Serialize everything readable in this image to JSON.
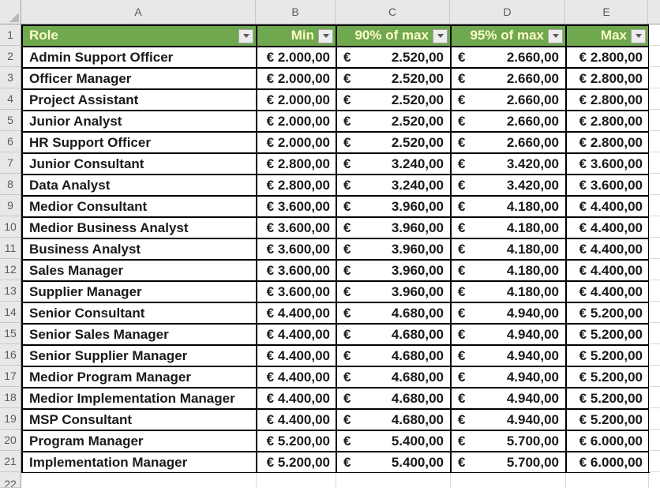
{
  "sheet": {
    "column_letters": [
      "A",
      "B",
      "C",
      "D",
      "E"
    ],
    "row_numbers": [
      "1",
      "2",
      "3",
      "4",
      "5",
      "6",
      "7",
      "8",
      "9",
      "10",
      "11",
      "12",
      "13",
      "14",
      "15",
      "16",
      "17",
      "18",
      "19",
      "20",
      "21",
      "22"
    ],
    "colors": {
      "header_bg": "#6FA84F",
      "header_text": "#FDFBC8",
      "grid_border": "#000000",
      "chrome_bg": "#E8E8E8",
      "chrome_text": "#5A5A5A"
    },
    "table": {
      "currency_symbol": "€",
      "headers": {
        "role": "Role",
        "min": "Min",
        "p90": "90% of max",
        "p95": "95% of max",
        "max": "Max"
      },
      "rows": [
        {
          "role": "Admin Support Officer",
          "min": "€ 2.000,00",
          "p90": "2.520,00",
          "p95": "2.660,00",
          "max": "€ 2.800,00"
        },
        {
          "role": "Officer Manager",
          "min": "€ 2.000,00",
          "p90": "2.520,00",
          "p95": "2.660,00",
          "max": "€ 2.800,00"
        },
        {
          "role": "Project Assistant",
          "min": "€ 2.000,00",
          "p90": "2.520,00",
          "p95": "2.660,00",
          "max": "€ 2.800,00"
        },
        {
          "role": "Junior Analyst",
          "min": "€ 2.000,00",
          "p90": "2.520,00",
          "p95": "2.660,00",
          "max": "€ 2.800,00"
        },
        {
          "role": "HR Support Officer",
          "min": "€ 2.000,00",
          "p90": "2.520,00",
          "p95": "2.660,00",
          "max": "€ 2.800,00"
        },
        {
          "role": "Junior Consultant",
          "min": "€ 2.800,00",
          "p90": "3.240,00",
          "p95": "3.420,00",
          "max": "€ 3.600,00"
        },
        {
          "role": "Data Analyst",
          "min": "€ 2.800,00",
          "p90": "3.240,00",
          "p95": "3.420,00",
          "max": "€ 3.600,00"
        },
        {
          "role": "Medior Consultant",
          "min": "€ 3.600,00",
          "p90": "3.960,00",
          "p95": "4.180,00",
          "max": "€ 4.400,00"
        },
        {
          "role": "Medior Business Analyst",
          "min": "€ 3.600,00",
          "p90": "3.960,00",
          "p95": "4.180,00",
          "max": "€ 4.400,00"
        },
        {
          "role": "Business Analyst",
          "min": "€ 3.600,00",
          "p90": "3.960,00",
          "p95": "4.180,00",
          "max": "€ 4.400,00"
        },
        {
          "role": "Sales Manager",
          "min": "€ 3.600,00",
          "p90": "3.960,00",
          "p95": "4.180,00",
          "max": "€ 4.400,00"
        },
        {
          "role": "Supplier Manager",
          "min": "€ 3.600,00",
          "p90": "3.960,00",
          "p95": "4.180,00",
          "max": "€ 4.400,00"
        },
        {
          "role": "Senior Consultant",
          "min": "€ 4.400,00",
          "p90": "4.680,00",
          "p95": "4.940,00",
          "max": "€ 5.200,00"
        },
        {
          "role": "Senior Sales Manager",
          "min": "€ 4.400,00",
          "p90": "4.680,00",
          "p95": "4.940,00",
          "max": "€ 5.200,00"
        },
        {
          "role": "Senior Supplier Manager",
          "min": "€ 4.400,00",
          "p90": "4.680,00",
          "p95": "4.940,00",
          "max": "€ 5.200,00"
        },
        {
          "role": "Medior Program Manager",
          "min": "€ 4.400,00",
          "p90": "4.680,00",
          "p95": "4.940,00",
          "max": "€ 5.200,00"
        },
        {
          "role": "Medior Implementation Manager",
          "min": "€ 4.400,00",
          "p90": "4.680,00",
          "p95": "4.940,00",
          "max": "€ 5.200,00"
        },
        {
          "role": "MSP Consultant",
          "min": "€ 4.400,00",
          "p90": "4.680,00",
          "p95": "4.940,00",
          "max": "€ 5.200,00"
        },
        {
          "role": "Program Manager",
          "min": "€ 5.200,00",
          "p90": "5.400,00",
          "p95": "5.700,00",
          "max": "€ 6.000,00"
        },
        {
          "role": "Implementation Manager",
          "min": "€ 5.200,00",
          "p90": "5.400,00",
          "p95": "5.700,00",
          "max": "€ 6.000,00"
        }
      ]
    }
  }
}
